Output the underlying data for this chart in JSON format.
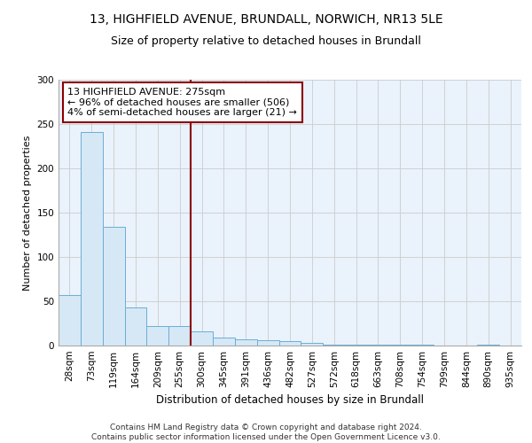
{
  "title1": "13, HIGHFIELD AVENUE, BRUNDALL, NORWICH, NR13 5LE",
  "title2": "Size of property relative to detached houses in Brundall",
  "xlabel": "Distribution of detached houses by size in Brundall",
  "ylabel": "Number of detached properties",
  "bar_labels": [
    "28sqm",
    "73sqm",
    "119sqm",
    "164sqm",
    "209sqm",
    "255sqm",
    "300sqm",
    "345sqm",
    "391sqm",
    "436sqm",
    "482sqm",
    "527sqm",
    "572sqm",
    "618sqm",
    "663sqm",
    "708sqm",
    "754sqm",
    "799sqm",
    "844sqm",
    "890sqm",
    "935sqm"
  ],
  "bar_values": [
    57,
    241,
    134,
    43,
    22,
    22,
    16,
    9,
    7,
    6,
    5,
    3,
    1,
    1,
    1,
    1,
    1,
    0,
    0,
    1,
    0
  ],
  "bar_color": "#d6e8f5",
  "bar_edge_color": "#6baed6",
  "vline_x": 5.5,
  "vline_color": "#8b0000",
  "annotation_text": "13 HIGHFIELD AVENUE: 275sqm\n← 96% of detached houses are smaller (506)\n4% of semi-detached houses are larger (21) →",
  "annotation_box_color": "#ffffff",
  "annotation_box_edge_color": "#8b0000",
  "ylim": [
    0,
    300
  ],
  "yticks": [
    0,
    50,
    100,
    150,
    200,
    250,
    300
  ],
  "footer": "Contains HM Land Registry data © Crown copyright and database right 2024.\nContains public sector information licensed under the Open Government Licence v3.0.",
  "title1_fontsize": 10,
  "title2_fontsize": 9,
  "xlabel_fontsize": 8.5,
  "ylabel_fontsize": 8,
  "tick_fontsize": 7.5,
  "annotation_fontsize": 8,
  "footer_fontsize": 6.5
}
